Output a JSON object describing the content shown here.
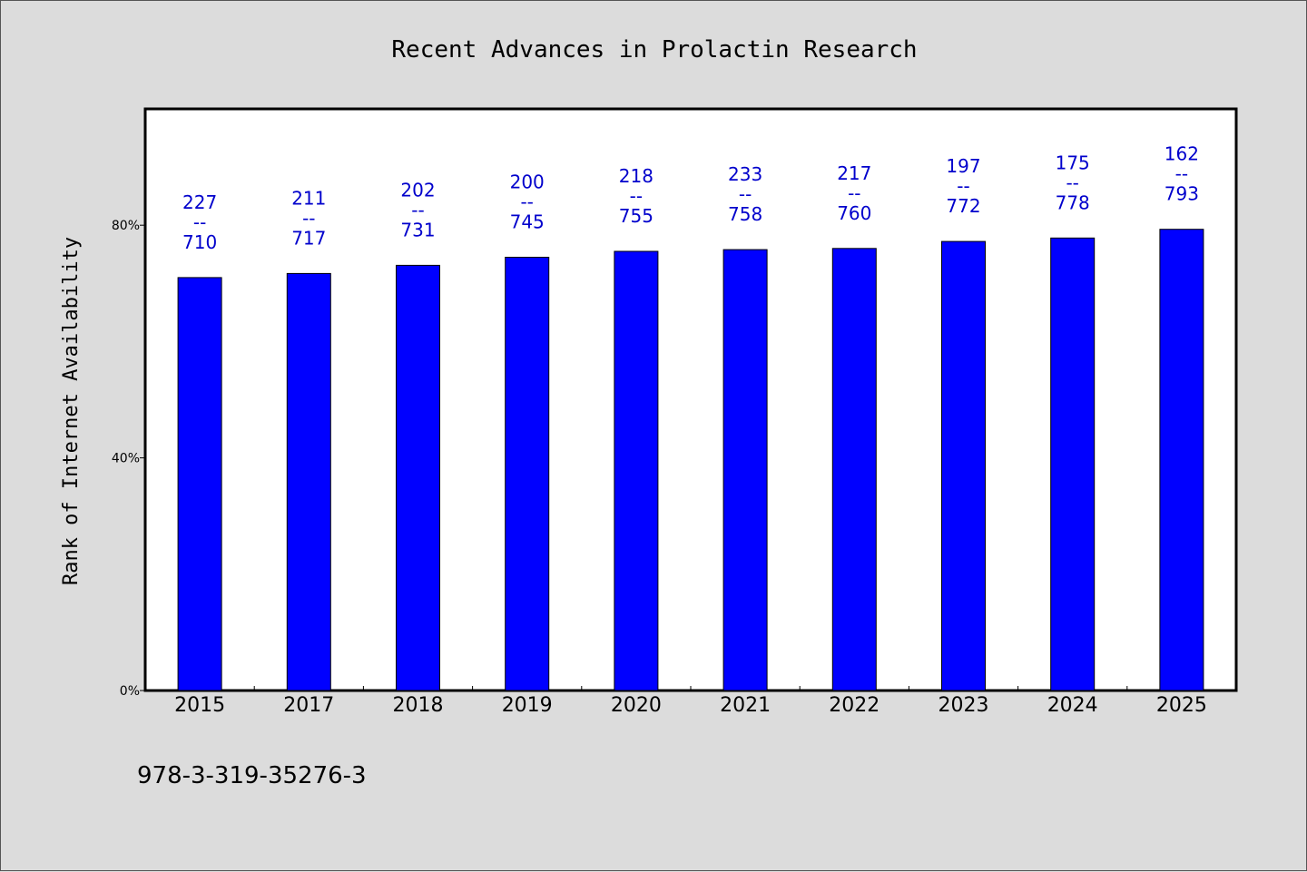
{
  "chart_data": {
    "type": "bar",
    "title": "Recent Advances in Prolactin Research",
    "xlabel": "",
    "ylabel": "Rank of Internet Availability",
    "categories": [
      "2015",
      "2017",
      "2018",
      "2019",
      "2020",
      "2021",
      "2022",
      "2023",
      "2024",
      "2025"
    ],
    "values": [
      71.0,
      71.7,
      73.1,
      74.5,
      75.5,
      75.8,
      76.0,
      77.2,
      77.8,
      79.3
    ],
    "y_unit": "%",
    "ylim": [
      0,
      100
    ],
    "yticks": [
      0,
      40,
      80
    ],
    "ytick_labels": [
      "0%",
      "40%",
      "80%"
    ],
    "bar_labels": [
      {
        "top": "227",
        "sep": "--",
        "bottom": "710"
      },
      {
        "top": "211",
        "sep": "--",
        "bottom": "717"
      },
      {
        "top": "202",
        "sep": "--",
        "bottom": "731"
      },
      {
        "top": "200",
        "sep": "--",
        "bottom": "745"
      },
      {
        "top": "218",
        "sep": "--",
        "bottom": "755"
      },
      {
        "top": "233",
        "sep": "--",
        "bottom": "758"
      },
      {
        "top": "217",
        "sep": "--",
        "bottom": "760"
      },
      {
        "top": "197",
        "sep": "--",
        "bottom": "772"
      },
      {
        "top": "175",
        "sep": "--",
        "bottom": "778"
      },
      {
        "top": "162",
        "sep": "--",
        "bottom": "793"
      }
    ],
    "grid": false,
    "legend": "none",
    "colors": {
      "bar": "#0000ff",
      "bar_label": "#0000cc",
      "plot_background": "#ffffff",
      "page_background": "#dcdcdc"
    }
  },
  "footer": {
    "isbn": "978-3-319-35276-3"
  }
}
